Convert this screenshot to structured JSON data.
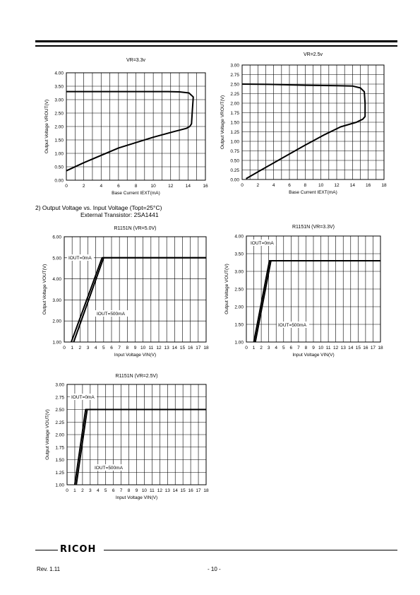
{
  "section": {
    "line1": "2)    Output Voltage vs. Input Voltage (Topt=25°C)",
    "line2": "External Transistor: 2SA1441"
  },
  "footer": {
    "logo": "RICOH",
    "revision": "Rev. 1.11",
    "page_number": "- 10 -"
  },
  "chart_data": [
    {
      "type": "line",
      "title": "VR=3.3v",
      "xlabel": "Base Current IEXT(mA)",
      "ylabel": "Output Voltage VROUT(V)",
      "xlim": [
        0,
        16
      ],
      "ylim": [
        0,
        4.0
      ],
      "xticks": [
        "0",
        "2",
        "4",
        "6",
        "8",
        "10",
        "12",
        "14",
        "16"
      ],
      "yticks": [
        "0.00",
        "0.50",
        "1.00",
        "1.50",
        "2.00",
        "2.50",
        "3.00",
        "3.50",
        "4.00"
      ],
      "grid": true,
      "series": [
        {
          "x": [
            0,
            2,
            4,
            6,
            8,
            10,
            11.7,
            13,
            14.1,
            14.6,
            14.5,
            14.4,
            14.2,
            13.8,
            12.5,
            10,
            6,
            2,
            0
          ],
          "y": [
            3.3,
            3.3,
            3.3,
            3.3,
            3.3,
            3.3,
            3.3,
            3.29,
            3.25,
            3.1,
            2.6,
            2.1,
            2.0,
            1.93,
            1.82,
            1.6,
            1.2,
            0.65,
            0.35
          ]
        }
      ]
    },
    {
      "type": "line",
      "title": "VR=2.5v",
      "xlabel": "Base Current IEXT(mA)",
      "ylabel": "Output Voltage VROUT(V)",
      "xlim": [
        0,
        18
      ],
      "ylim": [
        0,
        3.0
      ],
      "xticks": [
        "0",
        "2",
        "4",
        "6",
        "8",
        "10",
        "12",
        "14",
        "16",
        "18"
      ],
      "yticks": [
        "0.00",
        "0.25",
        "0.50",
        "0.75",
        "1.00",
        "1.25",
        "1.50",
        "1.75",
        "2.00",
        "2.25",
        "2.50",
        "2.75",
        "3.00"
      ],
      "grid": true,
      "series": [
        {
          "x": [
            0,
            4,
            8,
            12,
            14,
            15,
            15.5,
            15.6,
            15.6,
            15.3,
            14.5,
            12.5,
            10.5,
            8,
            5,
            2,
            0.5
          ],
          "y": [
            2.5,
            2.49,
            2.47,
            2.46,
            2.45,
            2.4,
            2.3,
            2.0,
            1.65,
            1.58,
            1.5,
            1.38,
            1.18,
            0.9,
            0.55,
            0.2,
            0.02
          ]
        }
      ]
    },
    {
      "type": "line",
      "title": "R1151N  (VR=5.0V)",
      "xlabel": "Input Voltage VIN(V)",
      "ylabel": "Output Voltage VOUT(V)",
      "xlim": [
        0,
        18
      ],
      "ylim": [
        1.0,
        6.0
      ],
      "xticks": [
        "0",
        "1",
        "2",
        "3",
        "4",
        "5",
        "6",
        "7",
        "8",
        "9",
        "10",
        "11",
        "12",
        "13",
        "14",
        "15",
        "16",
        "17",
        "18"
      ],
      "yticks": [
        "1.00",
        "2.00",
        "3.00",
        "4.00",
        "5.00",
        "6.00"
      ],
      "grid": true,
      "series": [
        {
          "name": "IOUT=0mA",
          "x": [
            1.2,
            5.0,
            18
          ],
          "y": [
            1.0,
            5.0,
            5.0
          ]
        },
        {
          "name": "IOUT=500mA",
          "x": [
            0.9,
            4.8,
            18
          ],
          "y": [
            1.0,
            5.0,
            5.0
          ]
        }
      ],
      "annotations": [
        "IOUT=0mA",
        "IOUT=500mA"
      ]
    },
    {
      "type": "line",
      "title": "R1151N  (VR=3.3V)",
      "xlabel": "Input Voltage VIN(V)",
      "ylabel": "Output Voltage VOUT(V)",
      "xlim": [
        0,
        18
      ],
      "ylim": [
        1.0,
        4.0
      ],
      "xticks": [
        "0",
        "1",
        "2",
        "3",
        "4",
        "5",
        "6",
        "7",
        "8",
        "9",
        "10",
        "11",
        "12",
        "13",
        "14",
        "15",
        "16",
        "17",
        "18"
      ],
      "yticks": [
        "1.00",
        "1.50",
        "2.00",
        "2.50",
        "3.00",
        "3.50",
        "4.00"
      ],
      "grid": true,
      "series": [
        {
          "name": "IOUT=0mA",
          "x": [
            1.2,
            3.3,
            18
          ],
          "y": [
            1.0,
            3.3,
            3.3
          ]
        },
        {
          "name": "IOUT=500mA",
          "x": [
            1.0,
            3.1,
            18
          ],
          "y": [
            1.0,
            3.3,
            3.3
          ]
        }
      ],
      "annotations": [
        "IOUT=0mA",
        "IOUT=500mA"
      ]
    },
    {
      "type": "line",
      "title": "R1151N  (VR=2.5V)",
      "xlabel": "Input Voltage VIN(V)",
      "ylabel": "Output Voltage VOUT(V)",
      "xlim": [
        0,
        18
      ],
      "ylim": [
        1.0,
        3.0
      ],
      "xticks": [
        "0",
        "1",
        "2",
        "3",
        "4",
        "5",
        "6",
        "7",
        "8",
        "9",
        "10",
        "11",
        "12",
        "13",
        "14",
        "15",
        "16",
        "17",
        "18"
      ],
      "yticks": [
        "1.00",
        "1.25",
        "1.50",
        "1.75",
        "2.00",
        "2.25",
        "2.50",
        "2.75",
        "3.00"
      ],
      "grid": true,
      "series": [
        {
          "name": "IOUT=0mA",
          "x": [
            1.2,
            2.6,
            18
          ],
          "y": [
            1.0,
            2.5,
            2.5
          ]
        },
        {
          "name": "IOUT=500mA",
          "x": [
            1.0,
            2.4,
            18
          ],
          "y": [
            1.0,
            2.5,
            2.5
          ]
        }
      ],
      "annotations": [
        "IOUT=0mA",
        "IOUT=500mA"
      ]
    }
  ]
}
